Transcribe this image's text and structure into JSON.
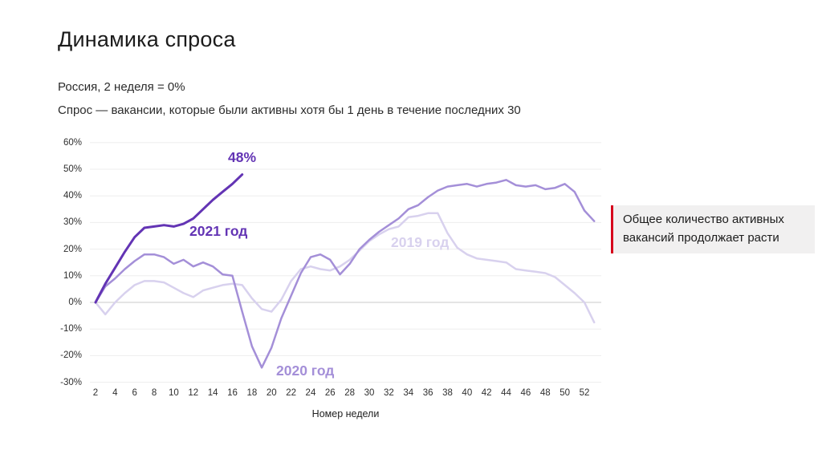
{
  "slide": {
    "title": "Динамика спроса",
    "subtitle_region": "Россия, 2 неделя = 0%",
    "subtitle_definition": "Спрос — вакансии, которые были активны хотя бы 1 день в течение последних 30",
    "callout": {
      "text": "Общее количество активных вакансий продолжает расти",
      "accent_color": "#d6001c",
      "background": "#f1f0f0"
    }
  },
  "chart_data": {
    "type": "line",
    "title": "Динамика спроса",
    "xlabel": "Номер недели",
    "ylabel": "",
    "grid": true,
    "xlim": [
      1.5,
      53.5
    ],
    "ylim": [
      -33,
      63
    ],
    "x_ticks": [
      2,
      4,
      6,
      8,
      10,
      12,
      14,
      16,
      18,
      20,
      22,
      24,
      26,
      28,
      30,
      32,
      34,
      36,
      38,
      40,
      42,
      44,
      46,
      48,
      50,
      52
    ],
    "y_tick_labels": [
      "60%",
      "50%",
      "40%",
      "30%",
      "20%",
      "10%",
      "0%",
      "-10%",
      "-20%",
      "-30%"
    ],
    "grid_color": "#ededed",
    "zero_line_color": "#c9c9c9",
    "series": [
      {
        "name": "2019",
        "label": "2019 год",
        "color": "#d8d1ee",
        "points": [
          [
            2,
            0
          ],
          [
            3,
            -4.5
          ],
          [
            4,
            0
          ],
          [
            5,
            3.5
          ],
          [
            6,
            6.5
          ],
          [
            7,
            8
          ],
          [
            8,
            8
          ],
          [
            9,
            7.5
          ],
          [
            10,
            5.5
          ],
          [
            11,
            3.5
          ],
          [
            12,
            2
          ],
          [
            13,
            4.5
          ],
          [
            14,
            5.5
          ],
          [
            15,
            6.5
          ],
          [
            16,
            7
          ],
          [
            17,
            6.5
          ],
          [
            18,
            1.5
          ],
          [
            19,
            -2.5
          ],
          [
            20,
            -3.5
          ],
          [
            21,
            1
          ],
          [
            22,
            8
          ],
          [
            23,
            12.5
          ],
          [
            24,
            13.5
          ],
          [
            25,
            12.5
          ],
          [
            26,
            12
          ],
          [
            27,
            13.5
          ],
          [
            28,
            16
          ],
          [
            29,
            19.5
          ],
          [
            30,
            23
          ],
          [
            31,
            25.5
          ],
          [
            32,
            27.5
          ],
          [
            33,
            28.5
          ],
          [
            34,
            32
          ],
          [
            35,
            32.5
          ],
          [
            36,
            33.5
          ],
          [
            37,
            33.5
          ],
          [
            38,
            26
          ],
          [
            39,
            20.5
          ],
          [
            40,
            18
          ],
          [
            41,
            16.5
          ],
          [
            42,
            16
          ],
          [
            43,
            15.5
          ],
          [
            44,
            15
          ],
          [
            45,
            12.5
          ],
          [
            46,
            12
          ],
          [
            47,
            11.5
          ],
          [
            48,
            11
          ],
          [
            49,
            9.5
          ],
          [
            50,
            6.5
          ],
          [
            51,
            3.5
          ],
          [
            52,
            0
          ],
          [
            53,
            -7.5
          ]
        ]
      },
      {
        "name": "2020",
        "label": "2020 год",
        "color": "#a48fd8",
        "points": [
          [
            2,
            0
          ],
          [
            3,
            6
          ],
          [
            4,
            9
          ],
          [
            5,
            12.5
          ],
          [
            6,
            15.5
          ],
          [
            7,
            18
          ],
          [
            8,
            18
          ],
          [
            9,
            17
          ],
          [
            10,
            14.5
          ],
          [
            11,
            16
          ],
          [
            12,
            13.5
          ],
          [
            13,
            15
          ],
          [
            14,
            13.5
          ],
          [
            15,
            10.5
          ],
          [
            16,
            10
          ],
          [
            17,
            -3.5
          ],
          [
            18,
            -16.5
          ],
          [
            19,
            -24.5
          ],
          [
            20,
            -17
          ],
          [
            21,
            -6
          ],
          [
            22,
            2.5
          ],
          [
            23,
            11
          ],
          [
            24,
            17
          ],
          [
            25,
            18
          ],
          [
            26,
            16
          ],
          [
            27,
            10.5
          ],
          [
            28,
            14.5
          ],
          [
            29,
            20
          ],
          [
            30,
            23.5
          ],
          [
            31,
            26.5
          ],
          [
            32,
            29
          ],
          [
            33,
            31.5
          ],
          [
            34,
            35
          ],
          [
            35,
            36.5
          ],
          [
            36,
            39.5
          ],
          [
            37,
            42
          ],
          [
            38,
            43.5
          ],
          [
            39,
            44
          ],
          [
            40,
            44.5
          ],
          [
            41,
            43.5
          ],
          [
            42,
            44.5
          ],
          [
            43,
            45
          ],
          [
            44,
            46
          ],
          [
            45,
            44
          ],
          [
            46,
            43.5
          ],
          [
            47,
            44
          ],
          [
            48,
            42.5
          ],
          [
            49,
            43
          ],
          [
            50,
            44.5
          ],
          [
            51,
            41.5
          ],
          [
            52,
            34.5
          ],
          [
            53,
            30.5
          ]
        ]
      },
      {
        "name": "2021",
        "label": "2021 год",
        "endpoint_label": "48%",
        "color": "#6334b4",
        "points": [
          [
            2,
            0
          ],
          [
            3,
            7
          ],
          [
            4,
            13
          ],
          [
            5,
            19
          ],
          [
            6,
            24.5
          ],
          [
            7,
            28
          ],
          [
            8,
            28.5
          ],
          [
            9,
            29
          ],
          [
            10,
            28.5
          ],
          [
            11,
            29.5
          ],
          [
            12,
            31.5
          ],
          [
            13,
            35
          ],
          [
            14,
            38.5
          ],
          [
            15,
            41.5
          ],
          [
            16,
            44.5
          ],
          [
            17,
            48
          ]
        ]
      }
    ]
  }
}
